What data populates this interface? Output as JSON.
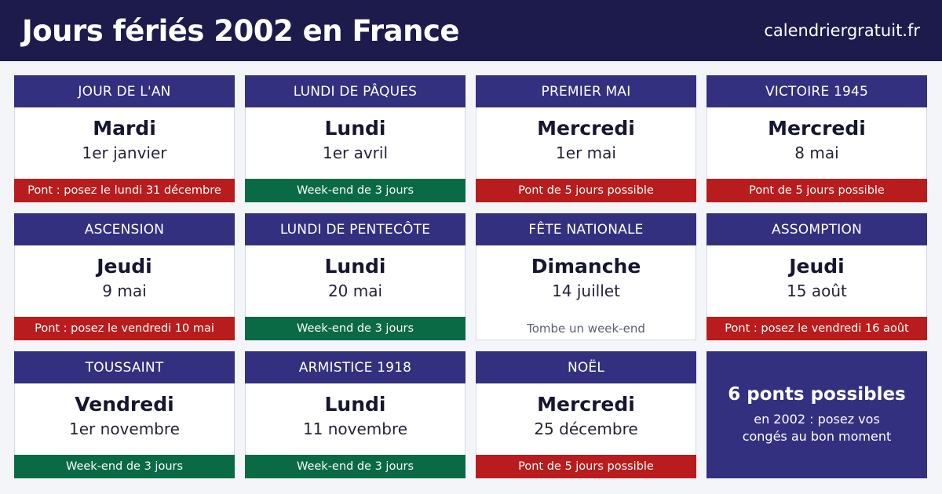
{
  "header": {
    "title": "Jours fériés 2002 en France",
    "site": "calendriergratuit.fr"
  },
  "holidays": [
    {
      "name": "JOUR DE L'AN",
      "day": "Mardi",
      "date": "1er janvier",
      "note": "Pont : posez le lundi 31 décembre",
      "note_type": "pont"
    },
    {
      "name": "LUNDI DE PÂQUES",
      "day": "Lundi",
      "date": "1er avril",
      "note": "Week-end de 3 jours",
      "note_type": "weekend"
    },
    {
      "name": "PREMIER MAI",
      "day": "Mercredi",
      "date": "1er mai",
      "note": "Pont de 5 jours possible",
      "note_type": "pont"
    },
    {
      "name": "VICTOIRE 1945",
      "day": "Mercredi",
      "date": "8 mai",
      "note": "Pont de 5 jours possible",
      "note_type": "pont"
    },
    {
      "name": "ASCENSION",
      "day": "Jeudi",
      "date": "9 mai",
      "note": "Pont : posez le vendredi 10 mai",
      "note_type": "pont"
    },
    {
      "name": "LUNDI DE PENTECÔTE",
      "day": "Lundi",
      "date": "20 mai",
      "note": "Week-end de 3 jours",
      "note_type": "weekend"
    },
    {
      "name": "FÊTE NATIONALE",
      "day": "Dimanche",
      "date": "14 juillet",
      "note": "Tombe un week-end",
      "note_type": "plain"
    },
    {
      "name": "ASSOMPTION",
      "day": "Jeudi",
      "date": "15 août",
      "note": "Pont : posez le vendredi 16 août",
      "note_type": "pont"
    },
    {
      "name": "TOUSSAINT",
      "day": "Vendredi",
      "date": "1er novembre",
      "note": "Week-end de 3 jours",
      "note_type": "weekend"
    },
    {
      "name": "ARMISTICE 1918",
      "day": "Lundi",
      "date": "11 novembre",
      "note": "Week-end de 3 jours",
      "note_type": "weekend"
    },
    {
      "name": "NOËL",
      "day": "Mercredi",
      "date": "25 décembre",
      "note": "Pont de 5 jours possible",
      "note_type": "pont"
    }
  ],
  "summary": {
    "headline": "6 ponts possibles",
    "line1": "en 2002 : posez vos",
    "line2": "congés au bon moment"
  },
  "colors": {
    "header_bg": "#1d1b4b",
    "card_head_bg": "#33307f",
    "pont": "#b91c1c",
    "weekend": "#0a6a45"
  }
}
